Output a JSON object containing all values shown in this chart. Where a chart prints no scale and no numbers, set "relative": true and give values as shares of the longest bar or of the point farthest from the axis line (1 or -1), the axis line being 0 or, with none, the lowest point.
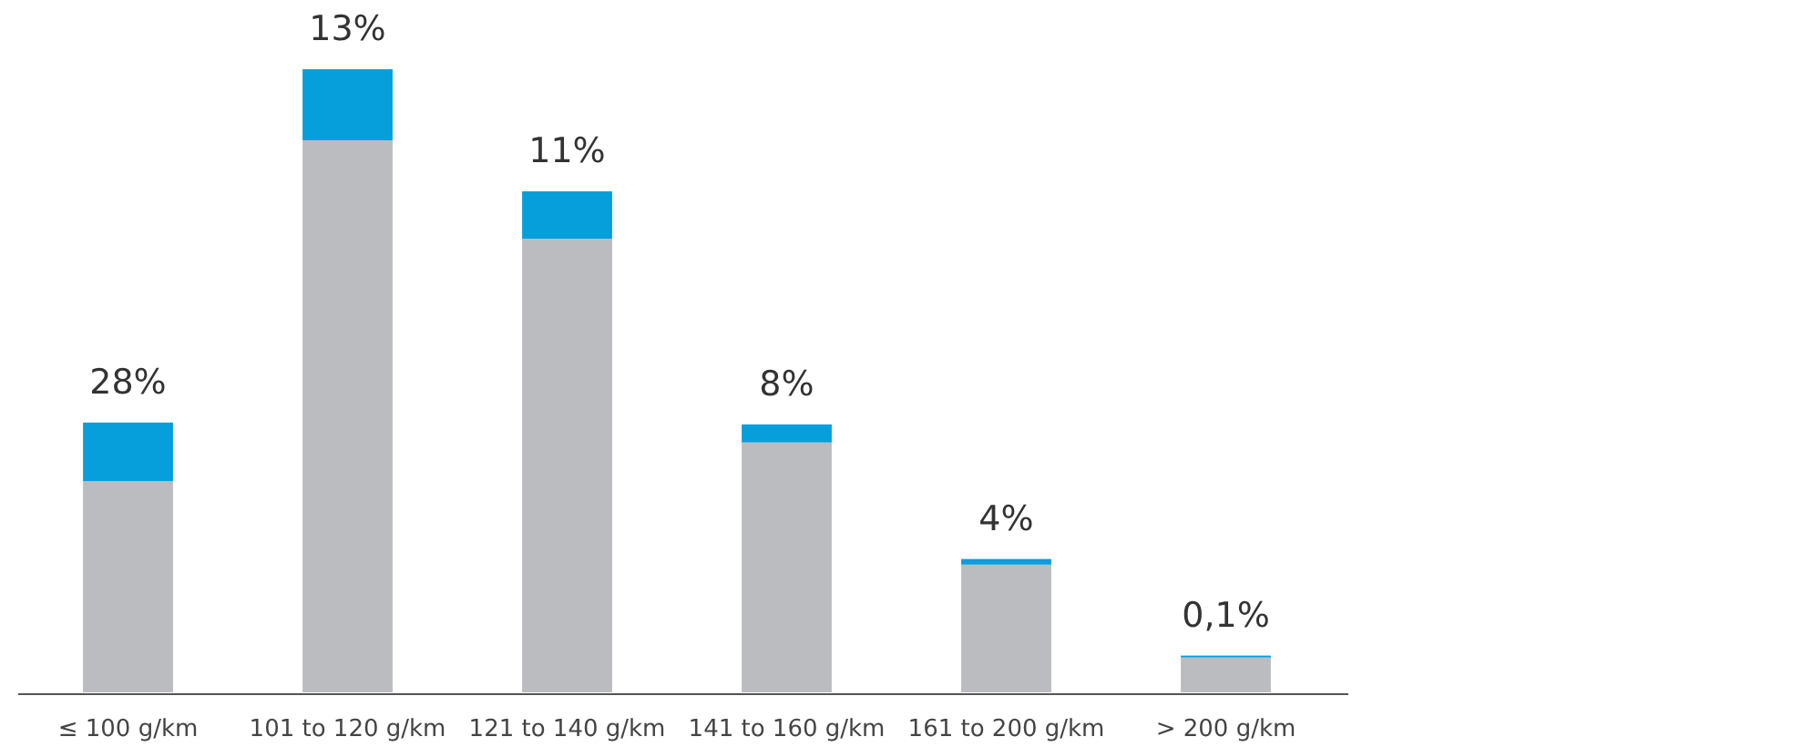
{
  "chart_data": {
    "type": "bar",
    "stacked": true,
    "relative": true,
    "legend": false,
    "categories": [
      "≤ 100 g/km",
      "101 to 120 g/km",
      "121 to 140 g/km",
      "141 to 160 g/km",
      "161 to 200  g/km",
      "> 200 g/km"
    ],
    "series": [
      {
        "color": "#bbbcc0",
        "values": [
          0.339,
          0.886,
          0.728,
          0.401,
          0.205,
          0.056
        ]
      },
      {
        "color": "#069fdc",
        "values": [
          0.094,
          0.114,
          0.076,
          0.029,
          0.009,
          0.003
        ]
      }
    ],
    "annotations": [
      {
        "text": "28%",
        "x": "≤ 100 g/km",
        "y": 0.433
      },
      {
        "text": "13%",
        "x": "101 to 120 g/km",
        "y": 1.0
      },
      {
        "text": "11%",
        "x": "121 to 140 g/km",
        "y": 0.804
      },
      {
        "text": "8%",
        "x": "141 to 160 g/km",
        "y": 0.43
      },
      {
        "text": "4%",
        "x": "161 to 200  g/km",
        "y": 0.214
      },
      {
        "text": "0,1%",
        "x": "> 200 g/km",
        "y": 0.059
      }
    ]
  }
}
